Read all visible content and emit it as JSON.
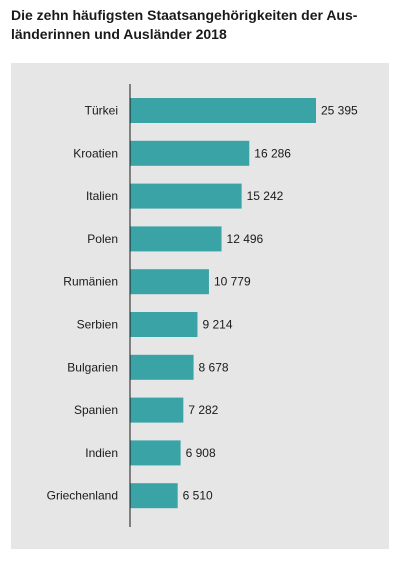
{
  "title_line1": "Die zehn häufigsten Staatsangehörigkeiten der Aus-",
  "title_line2": "länderinnen und Ausländer 2018",
  "colors": {
    "bar": "#3aa3a6",
    "panel": "#e6e6e6",
    "axis": "#1a1a1a"
  },
  "chart_data": {
    "type": "bar",
    "orientation": "horizontal",
    "title": "Die zehn häufigsten Staatsangehörigkeiten der Ausländerinnen und Ausländer 2018",
    "categories": [
      "Türkei",
      "Kroatien",
      "Italien",
      "Polen",
      "Rumänien",
      "Serbien",
      "Bulgarien",
      "Spanien",
      "Indien",
      "Griechenland"
    ],
    "values": [
      25395,
      16286,
      15242,
      12496,
      10779,
      9214,
      8678,
      7282,
      6908,
      6510
    ],
    "value_labels": [
      "25 395",
      "16 286",
      "15 242",
      "12 496",
      "10 779",
      "9 214",
      "8 678",
      "7 282",
      "6 908",
      "6 510"
    ],
    "xlim": [
      0,
      25395
    ],
    "grid": false,
    "legend": "none"
  }
}
